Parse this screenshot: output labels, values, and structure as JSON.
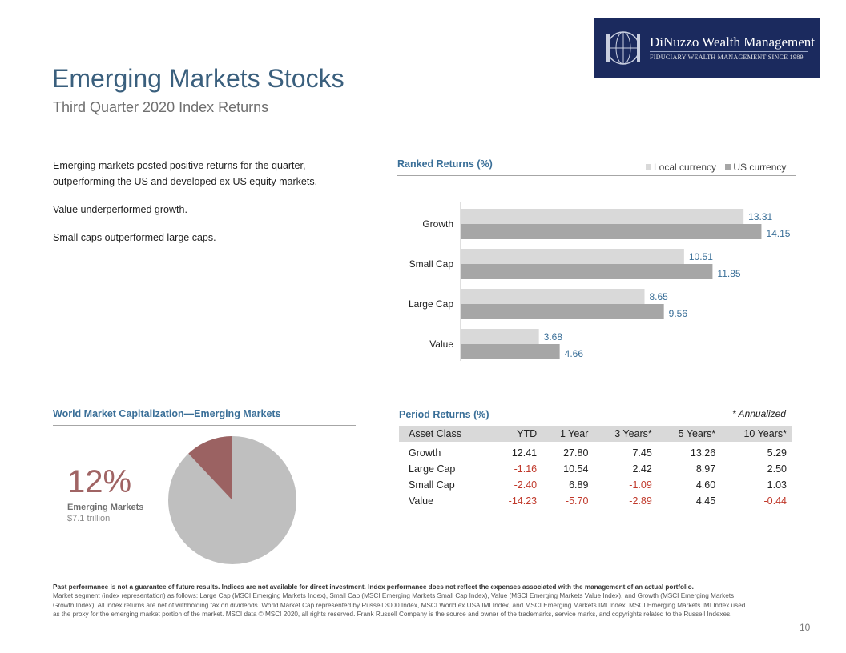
{
  "logo": {
    "name": "DiNuzzo Wealth Management",
    "tagline": "FIDUCIARY WEALTH MANAGEMENT SINCE 1989",
    "bg_color": "#1b2a5e"
  },
  "header": {
    "title": "Emerging Markets Stocks",
    "subtitle": "Third Quarter 2020 Index Returns"
  },
  "bullets": [
    "Emerging markets posted positive returns for the quarter, outperforming the US and developed ex US equity markets.",
    "Value underperformed growth.",
    "Small caps outperformed large caps."
  ],
  "ranked": {
    "heading": "Ranked Returns (%)",
    "legend": [
      "Local currency",
      "US currency"
    ]
  },
  "chart_data": {
    "type": "bar",
    "orientation": "horizontal",
    "categories": [
      "Growth",
      "Small Cap",
      "Large Cap",
      "Value"
    ],
    "series": [
      {
        "name": "Local currency",
        "color": "#d9d9d9",
        "values": [
          13.31,
          10.51,
          8.65,
          3.68
        ]
      },
      {
        "name": "US currency",
        "color": "#a6a6a6",
        "values": [
          14.15,
          11.85,
          9.56,
          4.66
        ]
      }
    ],
    "label_color": "#3a6f98",
    "xlim": [
      0,
      15
    ],
    "grid": false,
    "legend": "top-right"
  },
  "world_cap": {
    "heading": "World Market Capitalization—Emerging Markets",
    "percent_label": "12%",
    "fraction": 0.12,
    "label": "Emerging Markets",
    "value": "$7.1 trillion",
    "slice_color": "#9b6262",
    "rest_color": "#bfbfbf"
  },
  "period": {
    "heading": "Period Returns (%)",
    "note": "* Annualized",
    "columns": [
      "Asset Class",
      "YTD",
      "1 Year",
      "3 Years*",
      "5 Years*",
      "10 Years*"
    ],
    "rows": [
      [
        "Growth",
        "12.41",
        "27.80",
        "7.45",
        "13.26",
        "5.29"
      ],
      [
        "Large Cap",
        "-1.16",
        "10.54",
        "2.42",
        "8.97",
        "2.50"
      ],
      [
        "Small Cap",
        "-2.40",
        "6.89",
        "-1.09",
        "4.60",
        "1.03"
      ],
      [
        "Value",
        "-14.23",
        "-5.70",
        "-2.89",
        "4.45",
        "-0.44"
      ]
    ]
  },
  "footer": {
    "disclaimer_bold": "Past performance is not a guarantee of future results. Indices are not available for direct investment. Index performance does not reflect the expenses associated with the management of an actual portfolio.",
    "disclaimer_text": "Market segment (index representation) as follows: Large Cap (MSCI Emerging Markets Index), Small Cap (MSCI Emerging Markets Small Cap Index), Value (MSCI Emerging Markets Value Index), and Growth (MSCI Emerging Markets Growth Index). All index returns are net of withholding tax on dividends. World Market Cap represented by Russell 3000 Index, MSCI World ex USA IMI Index, and MSCI Emerging Markets IMI Index. MSCI Emerging Markets IMI Index used as the proxy for the emerging market portion of the market. MSCI data © MSCI 2020, all rights reserved. Frank Russell Company is the source and owner of the trademarks, service marks, and copyrights related to the Russell Indexes.",
    "page_number": "10"
  }
}
